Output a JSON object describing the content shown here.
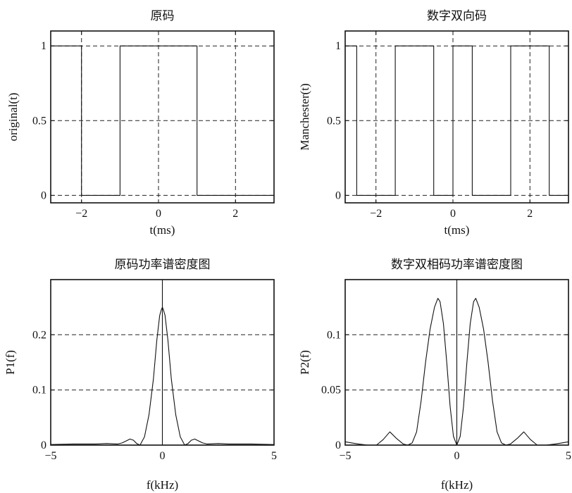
{
  "chart_data": [
    {
      "id": "original",
      "type": "line",
      "step": true,
      "title": "原码",
      "xlabel": "t(ms)",
      "ylabel": "original(t)",
      "xlim": [
        -2.8,
        3.0
      ],
      "ylim": [
        -0.05,
        1.1
      ],
      "xticks": [
        -2,
        0,
        2
      ],
      "xtick_labels": [
        "−2",
        "0",
        "2"
      ],
      "yticks": [
        0,
        0.5,
        1
      ],
      "ytick_labels": [
        "0",
        "0.5",
        "1"
      ],
      "grid": true,
      "series": [
        {
          "x": [
            -2.8,
            -2.0,
            -2.0,
            -1.0,
            -1.0,
            1.0,
            1.0,
            3.0
          ],
          "y": [
            1,
            1,
            0,
            0,
            1,
            1,
            0,
            0
          ]
        }
      ]
    },
    {
      "id": "manchester",
      "type": "line",
      "step": true,
      "title": "数字双向码",
      "xlabel": "t(ms)",
      "ylabel": "Manchester(t)",
      "xlim": [
        -2.8,
        3.0
      ],
      "ylim": [
        -0.05,
        1.1
      ],
      "xticks": [
        -2,
        0,
        2
      ],
      "xtick_labels": [
        "−2",
        "0",
        "2"
      ],
      "yticks": [
        0,
        0.5,
        1
      ],
      "ytick_labels": [
        "0",
        "0.5",
        "1"
      ],
      "grid": true,
      "series": [
        {
          "x": [
            -2.8,
            -2.5,
            -2.5,
            -1.5,
            -1.5,
            -0.5,
            -0.5,
            0.0,
            0.0,
            0.5,
            0.5,
            1.5,
            1.5,
            2.0,
            2.0,
            2.5,
            2.5,
            3.0
          ],
          "y": [
            1,
            1,
            0,
            0,
            1,
            1,
            0,
            0,
            1,
            1,
            0,
            0,
            1,
            1,
            1,
            1,
            0,
            0
          ]
        }
      ]
    },
    {
      "id": "p1",
      "type": "line",
      "title": "原码功率谱密度图",
      "xlabel": "f(kHz)",
      "ylabel": "P1(f)",
      "xlim": [
        -5,
        5
      ],
      "ylim": [
        0,
        0.3
      ],
      "xticks": [
        -5,
        0,
        5
      ],
      "xtick_labels": [
        "−5",
        "0",
        "5"
      ],
      "yticks": [
        0,
        0.1,
        0.2
      ],
      "ytick_labels": [
        "0",
        "0.1",
        "0.2"
      ],
      "grid": true,
      "series": [
        {
          "x": [
            -5,
            -4,
            -3,
            -2.5,
            -2,
            -1.8,
            -1.6,
            -1.45,
            -1.3,
            -1.15,
            -1.0,
            -0.8,
            -0.6,
            -0.4,
            -0.25,
            -0.12,
            -0.05,
            0,
            0.05,
            0.12,
            0.25,
            0.4,
            0.6,
            0.8,
            1.0,
            1.15,
            1.3,
            1.45,
            1.6,
            1.8,
            2.0,
            2.5,
            3.0,
            4.0,
            5.0
          ],
          "y": [
            0.001,
            0.002,
            0.002,
            0.003,
            0.002,
            0.004,
            0.008,
            0.011,
            0.009,
            0.003,
            0.0,
            0.015,
            0.055,
            0.12,
            0.19,
            0.235,
            0.245,
            0.25,
            0.245,
            0.235,
            0.19,
            0.12,
            0.055,
            0.015,
            0.0,
            0.003,
            0.009,
            0.011,
            0.008,
            0.004,
            0.002,
            0.003,
            0.002,
            0.002,
            0.001
          ]
        }
      ],
      "spike": {
        "x": 0,
        "y": 0.3
      }
    },
    {
      "id": "p2",
      "type": "line",
      "title": "数字双相码功率谱密度图",
      "xlabel": "f(kHz)",
      "ylabel": "P2(f)",
      "xlim": [
        -5,
        5
      ],
      "ylim": [
        0,
        0.15
      ],
      "xticks": [
        -5,
        0,
        5
      ],
      "xtick_labels": [
        "−5",
        "0",
        "5"
      ],
      "yticks": [
        0,
        0.05,
        0.1
      ],
      "ytick_labels": [
        "0",
        "0.05",
        "0.1"
      ],
      "grid": true,
      "series": [
        {
          "x": [
            -5,
            -4.7,
            -4.4,
            -4.0,
            -3.6,
            -3.3,
            -3.0,
            -2.7,
            -2.4,
            -2.2,
            -2.0,
            -1.8,
            -1.6,
            -1.4,
            -1.2,
            -1.0,
            -0.85,
            -0.75,
            -0.6,
            -0.45,
            -0.3,
            -0.15,
            0,
            0.15,
            0.3,
            0.45,
            0.6,
            0.75,
            0.85,
            1.0,
            1.2,
            1.4,
            1.6,
            1.8,
            2.0,
            2.2,
            2.4,
            2.7,
            3.0,
            3.3,
            3.6,
            4.0,
            4.4,
            4.7,
            5.0
          ],
          "y": [
            0.003,
            0.002,
            0.001,
            0.0,
            0.0,
            0.005,
            0.012,
            0.006,
            0.001,
            0.0,
            0.002,
            0.012,
            0.04,
            0.075,
            0.105,
            0.125,
            0.133,
            0.13,
            0.11,
            0.075,
            0.035,
            0.008,
            0.0,
            0.008,
            0.035,
            0.075,
            0.11,
            0.13,
            0.133,
            0.125,
            0.105,
            0.075,
            0.04,
            0.012,
            0.002,
            0.0,
            0.001,
            0.006,
            0.012,
            0.005,
            0.0,
            0.0,
            0.001,
            0.002,
            0.003
          ]
        }
      ],
      "spike": {
        "x": 0,
        "y": 0.15
      }
    }
  ]
}
